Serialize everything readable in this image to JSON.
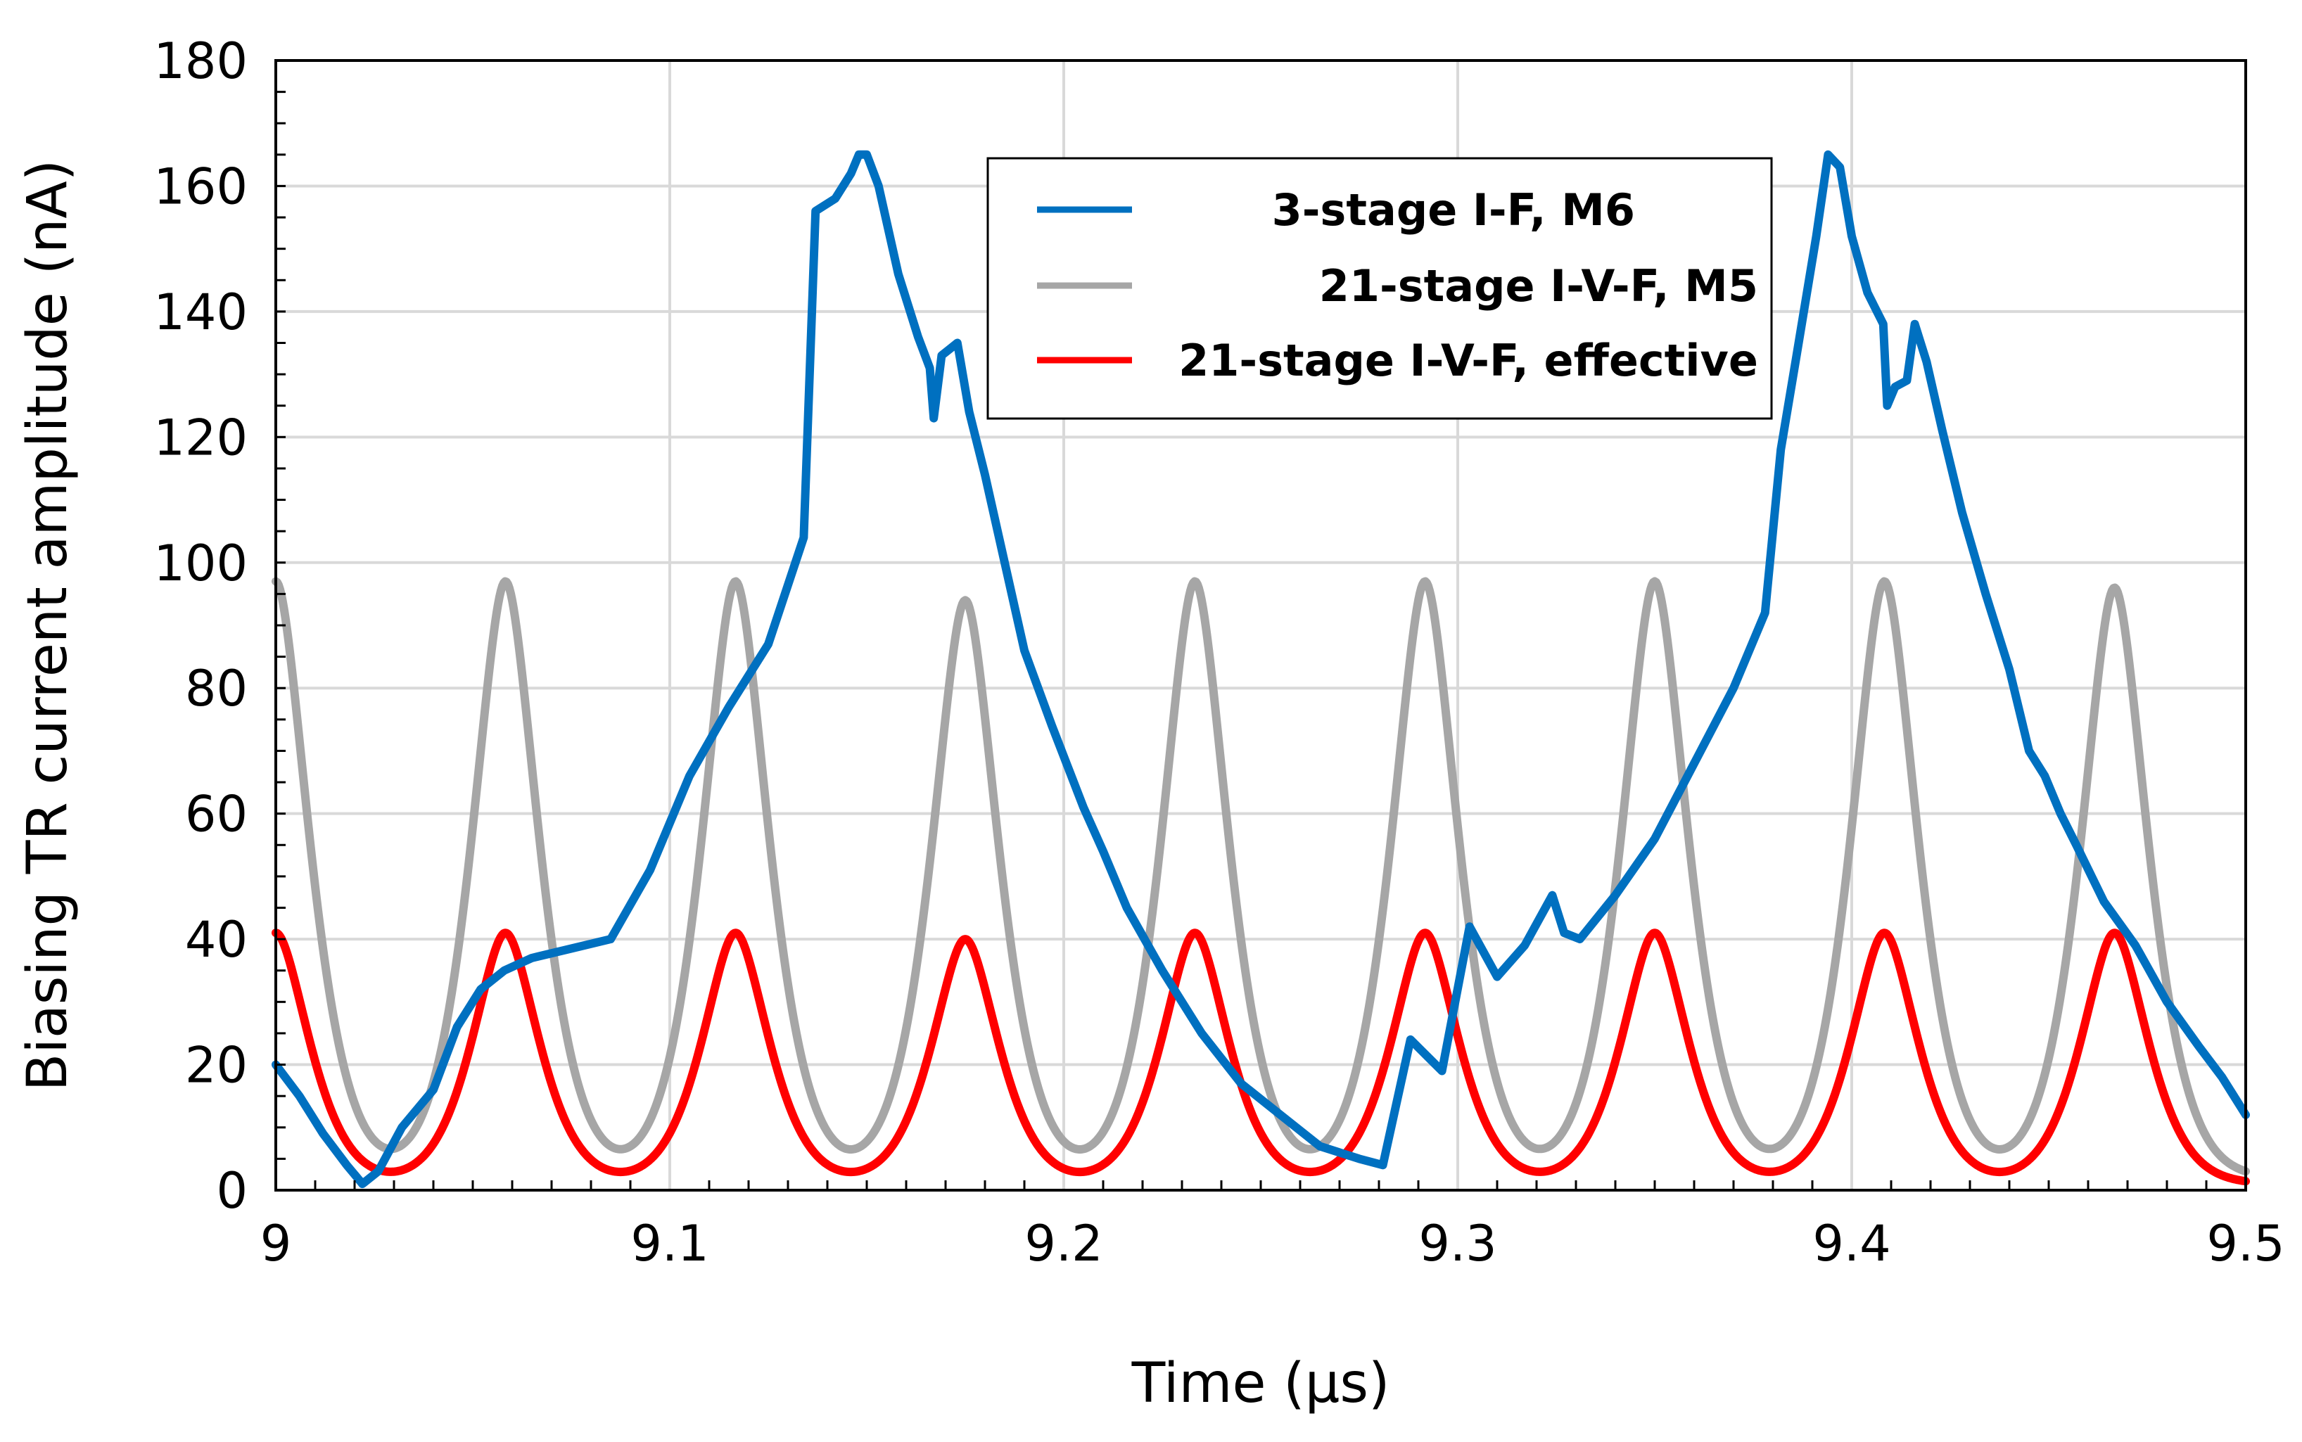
{
  "chart_data": {
    "type": "line",
    "title": "",
    "xlabel": "Time (µs)",
    "ylabel": "Biasing TR current amplitude (nA)",
    "xlim": [
      9,
      9.5
    ],
    "ylim": [
      0,
      180
    ],
    "x_ticks": [
      9,
      9.1,
      9.2,
      9.3,
      9.4,
      9.5
    ],
    "x_tick_labels": [
      "9",
      "9.1",
      "9.2",
      "9.3",
      "9.4",
      "9.5"
    ],
    "y_ticks": [
      0,
      20,
      40,
      60,
      80,
      100,
      120,
      140,
      160,
      180
    ],
    "y_tick_labels": [
      "0",
      "20",
      "40",
      "60",
      "80",
      "100",
      "120",
      "140",
      "160",
      "180"
    ],
    "grid": true,
    "legend_position": "top-right",
    "series": [
      {
        "name": "3-stage I-F, M6",
        "color": "#0070C0",
        "x": [
          9.0,
          9.006,
          9.012,
          9.018,
          9.022,
          9.026,
          9.032,
          9.04,
          9.046,
          9.052,
          9.058,
          9.065,
          9.075,
          9.085,
          9.095,
          9.105,
          9.115,
          9.125,
          9.134,
          9.137,
          9.142,
          9.146,
          9.148,
          9.15,
          9.153,
          9.158,
          9.163,
          9.166,
          9.167,
          9.169,
          9.171,
          9.173,
          9.176,
          9.18,
          9.185,
          9.19,
          9.197,
          9.205,
          9.21,
          9.216,
          9.225,
          9.235,
          9.245,
          9.255,
          9.265,
          9.275,
          9.281,
          9.288,
          9.296,
          9.303,
          9.31,
          9.317,
          9.324,
          9.327,
          9.331,
          9.34,
          9.35,
          9.36,
          9.37,
          9.378,
          9.382,
          9.386,
          9.391,
          9.394,
          9.397,
          9.4,
          9.404,
          9.408,
          9.409,
          9.411,
          9.414,
          9.416,
          9.419,
          9.423,
          9.428,
          9.434,
          9.44,
          9.445,
          9.449,
          9.453,
          9.457,
          9.464,
          9.472,
          9.48,
          9.488,
          9.494,
          9.5
        ],
        "y": [
          20,
          15,
          9,
          4,
          1,
          3,
          10,
          16,
          26,
          32,
          35,
          37,
          38.5,
          40,
          51,
          66,
          77,
          87,
          104,
          156,
          158,
          162,
          165,
          165,
          160,
          146,
          136,
          131,
          123,
          133,
          134,
          135,
          124,
          114,
          100,
          86,
          74,
          61,
          54,
          45,
          35,
          25,
          17,
          12,
          7,
          5,
          4,
          24,
          19,
          42,
          34,
          39,
          47,
          41,
          40,
          47,
          56,
          68,
          80,
          92,
          118,
          133,
          152,
          165,
          163,
          152,
          143,
          138,
          125,
          128,
          129,
          138,
          132,
          121,
          108,
          95,
          83,
          70,
          66,
          60,
          55,
          46,
          39,
          30,
          23,
          18,
          12
        ]
      },
      {
        "name": "21-stage I-V-F, M5",
        "color": "#A6A6A6",
        "period": 0.0583,
        "first_peak_x": 9.0,
        "peak_value": 97,
        "min_value": 2,
        "x": [
          9.0,
          9.0583,
          9.1167,
          9.175,
          9.2333,
          9.2917,
          9.35,
          9.4083,
          9.4667
        ],
        "y": [
          97,
          97,
          97,
          94,
          97,
          97,
          97,
          97,
          96
        ]
      },
      {
        "name": "21-stage I-V-F, effective",
        "color": "#FF0000",
        "period": 0.0583,
        "first_peak_x": 9.0,
        "peak_value": 41,
        "min_value": 1,
        "x": [
          9.0,
          9.0583,
          9.1167,
          9.175,
          9.2333,
          9.2917,
          9.35,
          9.4083,
          9.4667
        ],
        "y": [
          41,
          41,
          41,
          40,
          41,
          41,
          41,
          41,
          41
        ]
      }
    ]
  }
}
